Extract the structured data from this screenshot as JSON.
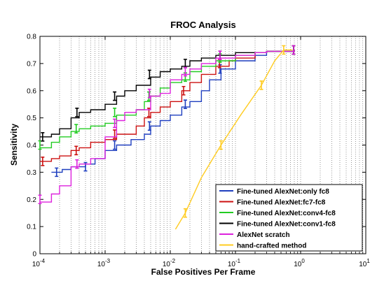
{
  "chart_data": {
    "type": "line",
    "title": "FROC Analysis",
    "xlabel": "False Positives Per Frame",
    "ylabel": "Sensitivity",
    "xscale": "log",
    "xlim": [
      0.0001,
      10
    ],
    "ylim": [
      0,
      0.8
    ],
    "xticks": [
      {
        "value": 0.0001,
        "base": "10",
        "exp": "-4"
      },
      {
        "value": 0.001,
        "base": "10",
        "exp": "-3"
      },
      {
        "value": 0.01,
        "base": "10",
        "exp": "-2"
      },
      {
        "value": 0.1,
        "base": "10",
        "exp": "-1"
      },
      {
        "value": 1,
        "base": "10",
        "exp": "0"
      },
      {
        "value": 10,
        "base": "10",
        "exp": "1"
      }
    ],
    "yticks": [
      "0",
      "0.1",
      "0.2",
      "0.3",
      "0.4",
      "0.5",
      "0.6",
      "0.7",
      "0.8"
    ],
    "grid": "x-minor-dotted",
    "legend_position": "bottom-right",
    "series": [
      {
        "name": "Fine-tuned AlexNet:only fc8",
        "color": "#1f3fbf",
        "style": "step",
        "points": [
          [
            0.00015,
            0.3
          ],
          [
            0.00022,
            0.31
          ],
          [
            0.0003,
            0.32
          ],
          [
            0.0004,
            0.32
          ],
          [
            0.0005,
            0.33
          ],
          [
            0.0007,
            0.35
          ],
          [
            0.001,
            0.38
          ],
          [
            0.0015,
            0.4
          ],
          [
            0.0025,
            0.42
          ],
          [
            0.004,
            0.44
          ],
          [
            0.005,
            0.47
          ],
          [
            0.007,
            0.49
          ],
          [
            0.01,
            0.51
          ],
          [
            0.015,
            0.54
          ],
          [
            0.02,
            0.56
          ],
          [
            0.03,
            0.6
          ],
          [
            0.04,
            0.64
          ],
          [
            0.06,
            0.68
          ],
          [
            0.1,
            0.71
          ],
          [
            0.2,
            0.73
          ],
          [
            0.3,
            0.745
          ],
          [
            0.8,
            0.75
          ]
        ],
        "error_bars": [
          [
            0.00018,
            0.3
          ],
          [
            0.0005,
            0.32
          ],
          [
            0.0014,
            0.4
          ],
          [
            0.0048,
            0.47
          ],
          [
            0.017,
            0.55
          ],
          [
            0.058,
            0.68
          ],
          [
            0.78,
            0.75
          ]
        ]
      },
      {
        "name": "Fine-tuned AlexNet:fc7-fc8",
        "color": "#cc1111",
        "style": "step",
        "points": [
          [
            0.0001,
            0.34
          ],
          [
            0.00015,
            0.35
          ],
          [
            0.0002,
            0.36
          ],
          [
            0.0003,
            0.38
          ],
          [
            0.0004,
            0.39
          ],
          [
            0.0006,
            0.41
          ],
          [
            0.001,
            0.42
          ],
          [
            0.0015,
            0.44
          ],
          [
            0.003,
            0.47
          ],
          [
            0.004,
            0.5
          ],
          [
            0.005,
            0.52
          ],
          [
            0.007,
            0.54
          ],
          [
            0.01,
            0.56
          ],
          [
            0.015,
            0.6
          ],
          [
            0.02,
            0.63
          ],
          [
            0.03,
            0.66
          ],
          [
            0.05,
            0.69
          ],
          [
            0.08,
            0.71
          ],
          [
            0.1,
            0.72
          ],
          [
            0.2,
            0.74
          ],
          [
            0.3,
            0.745
          ],
          [
            0.8,
            0.75
          ]
        ],
        "error_bars": [
          [
            0.00011,
            0.34
          ],
          [
            0.00036,
            0.38
          ],
          [
            0.0014,
            0.44
          ],
          [
            0.0047,
            0.52
          ],
          [
            0.016,
            0.6
          ],
          [
            0.057,
            0.7
          ],
          [
            0.78,
            0.75
          ]
        ]
      },
      {
        "name": "Fine-tuned AlexNet:conv4-fc8",
        "color": "#22cc22",
        "style": "step",
        "points": [
          [
            0.0001,
            0.39
          ],
          [
            0.00015,
            0.41
          ],
          [
            0.0002,
            0.43
          ],
          [
            0.0003,
            0.45
          ],
          [
            0.0004,
            0.46
          ],
          [
            0.0006,
            0.47
          ],
          [
            0.001,
            0.48
          ],
          [
            0.0015,
            0.51
          ],
          [
            0.003,
            0.53
          ],
          [
            0.004,
            0.56
          ],
          [
            0.005,
            0.58
          ],
          [
            0.007,
            0.61
          ],
          [
            0.01,
            0.63
          ],
          [
            0.015,
            0.64
          ],
          [
            0.02,
            0.67
          ],
          [
            0.03,
            0.69
          ],
          [
            0.05,
            0.71
          ],
          [
            0.1,
            0.73
          ],
          [
            0.2,
            0.74
          ],
          [
            0.3,
            0.745
          ],
          [
            0.8,
            0.75
          ]
        ],
        "error_bars": [
          [
            0.0001,
            0.4
          ],
          [
            0.00036,
            0.46
          ],
          [
            0.0014,
            0.52
          ],
          [
            0.0047,
            0.58
          ],
          [
            0.017,
            0.65
          ],
          [
            0.058,
            0.72
          ],
          [
            0.78,
            0.75
          ]
        ]
      },
      {
        "name": "Fine-tuned AlexNet:conv1-fc8",
        "color": "#000000",
        "style": "step",
        "points": [
          [
            0.0001,
            0.43
          ],
          [
            0.00015,
            0.44
          ],
          [
            0.0002,
            0.46
          ],
          [
            0.0003,
            0.5
          ],
          [
            0.0004,
            0.52
          ],
          [
            0.0006,
            0.53
          ],
          [
            0.001,
            0.55
          ],
          [
            0.0015,
            0.58
          ],
          [
            0.002,
            0.6
          ],
          [
            0.003,
            0.62
          ],
          [
            0.005,
            0.65
          ],
          [
            0.007,
            0.67
          ],
          [
            0.01,
            0.68
          ],
          [
            0.015,
            0.69
          ],
          [
            0.02,
            0.71
          ],
          [
            0.03,
            0.72
          ],
          [
            0.05,
            0.73
          ],
          [
            0.1,
            0.74
          ],
          [
            0.3,
            0.745
          ],
          [
            0.8,
            0.75
          ]
        ],
        "error_bars": [
          [
            0.00011,
            0.43
          ],
          [
            0.00037,
            0.52
          ],
          [
            0.0014,
            0.58
          ],
          [
            0.0048,
            0.66
          ],
          [
            0.017,
            0.7
          ],
          [
            0.058,
            0.73
          ],
          [
            0.78,
            0.75
          ]
        ]
      },
      {
        "name": "AlexNet scratch",
        "color": "#dd22dd",
        "style": "step",
        "points": [
          [
            0.0001,
            0.19
          ],
          [
            0.00015,
            0.22
          ],
          [
            0.0002,
            0.25
          ],
          [
            0.0003,
            0.32
          ],
          [
            0.0004,
            0.33
          ],
          [
            0.0006,
            0.35
          ],
          [
            0.001,
            0.43
          ],
          [
            0.0015,
            0.49
          ],
          [
            0.002,
            0.52
          ],
          [
            0.003,
            0.53
          ],
          [
            0.005,
            0.58
          ],
          [
            0.007,
            0.59
          ],
          [
            0.01,
            0.64
          ],
          [
            0.015,
            0.66
          ],
          [
            0.02,
            0.68
          ],
          [
            0.03,
            0.7
          ],
          [
            0.05,
            0.72
          ],
          [
            0.1,
            0.73
          ],
          [
            0.2,
            0.74
          ],
          [
            0.3,
            0.745
          ],
          [
            0.8,
            0.75
          ]
        ],
        "error_bars": [
          [
            0.0001,
            0.2
          ],
          [
            0.00037,
            0.33
          ],
          [
            0.0014,
            0.48
          ],
          [
            0.0048,
            0.59
          ],
          [
            0.017,
            0.67
          ],
          [
            0.058,
            0.73
          ],
          [
            0.78,
            0.75
          ]
        ]
      },
      {
        "name": "hand-crafted method",
        "color": "#ffcc22",
        "style": "line",
        "points": [
          [
            0.012,
            0.09
          ],
          [
            0.017,
            0.15
          ],
          [
            0.03,
            0.28
          ],
          [
            0.06,
            0.4
          ],
          [
            0.12,
            0.51
          ],
          [
            0.25,
            0.62
          ],
          [
            0.4,
            0.71
          ],
          [
            0.55,
            0.75
          ],
          [
            0.75,
            0.75
          ]
        ],
        "error_bars": [
          [
            0.017,
            0.15
          ],
          [
            0.06,
            0.4
          ],
          [
            0.25,
            0.62
          ],
          [
            0.55,
            0.75
          ]
        ]
      }
    ]
  }
}
